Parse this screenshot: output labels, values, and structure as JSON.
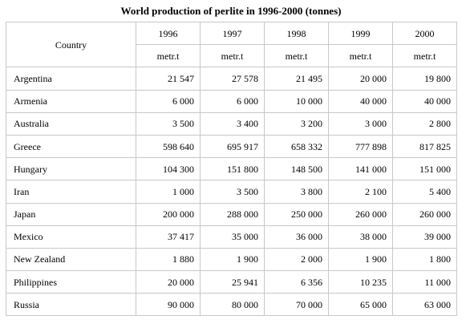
{
  "title": "World production of perlite in 1996-2000 (tonnes)",
  "header": {
    "country_label": "Country",
    "years": [
      "1996",
      "1997",
      "1998",
      "1999",
      "2000"
    ],
    "unit": "metr.t"
  },
  "rows": [
    {
      "country": "Argentina",
      "values": [
        "21 547",
        "27 578",
        "21 495",
        "20 000",
        "19 800"
      ]
    },
    {
      "country": "Armenia",
      "values": [
        "6 000",
        "6 000",
        "10 000",
        "40 000",
        "40 000"
      ]
    },
    {
      "country": "Australia",
      "values": [
        "3 500",
        "3 400",
        "3 200",
        "3 000",
        "2 800"
      ]
    },
    {
      "country": "Greece",
      "values": [
        "598 640",
        "695 917",
        "658 332",
        "777 898",
        "817 825"
      ]
    },
    {
      "country": "Hungary",
      "values": [
        "104 300",
        "151 800",
        "148 500",
        "141 000",
        "151 000"
      ]
    },
    {
      "country": "Iran",
      "values": [
        "1 000",
        "3 500",
        "3 800",
        "2 100",
        "5 400"
      ]
    },
    {
      "country": "Japan",
      "values": [
        "200 000",
        "288 000",
        "250 000",
        "260 000",
        "260 000"
      ]
    },
    {
      "country": "Mexico",
      "values": [
        "37 417",
        "35 000",
        "36 000",
        "38 000",
        "39 000"
      ]
    },
    {
      "country": "New Zealand",
      "values": [
        "1 880",
        "1 900",
        "2 000",
        "1 900",
        "1 800"
      ]
    },
    {
      "country": "Philippines",
      "values": [
        "20 000",
        "25 941",
        "6 356",
        "10 235",
        "11 000"
      ]
    },
    {
      "country": "Russia",
      "values": [
        "90 000",
        "80 000",
        "70 000",
        "65 000",
        "63 000"
      ]
    }
  ]
}
